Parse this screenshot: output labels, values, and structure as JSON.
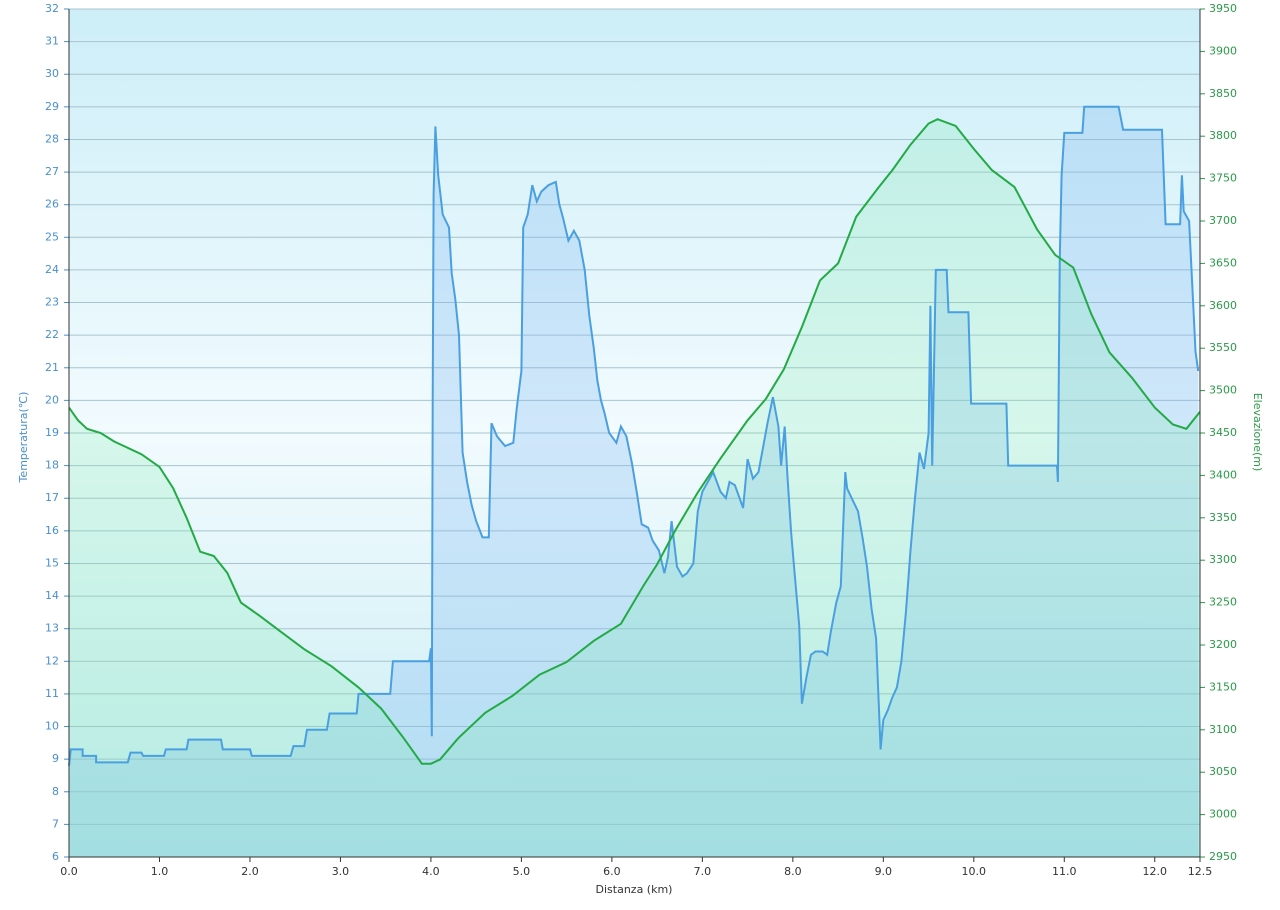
{
  "chart_data": {
    "type": "line",
    "x_label": "Distanza  (km)",
    "y_label": "Temperatura(℃)",
    "y2_label": "Elevazione(m)",
    "xlim": [
      0,
      12.5
    ],
    "xticks": [
      {
        "value": 0,
        "label": "0.0"
      },
      {
        "value": 1,
        "label": "1.0"
      },
      {
        "value": 2,
        "label": "2.0"
      },
      {
        "value": 3,
        "label": "3.0"
      },
      {
        "value": 4,
        "label": "4.0"
      },
      {
        "value": 5,
        "label": "5.0"
      },
      {
        "value": 6,
        "label": "6.0"
      },
      {
        "value": 7,
        "label": "7.0"
      },
      {
        "value": 8,
        "label": "8.0"
      },
      {
        "value": 9,
        "label": "9.0"
      },
      {
        "value": 10,
        "label": "10.0"
      },
      {
        "value": 11,
        "label": "11.0"
      },
      {
        "value": 12,
        "label": "12.0"
      },
      12.5
    ],
    "ylim": [
      6,
      32
    ],
    "yticks": [
      6,
      7,
      8,
      9,
      10,
      11,
      12,
      13,
      14,
      15,
      16,
      17,
      18,
      19,
      20,
      21,
      22,
      23,
      24,
      25,
      26,
      27,
      28,
      29,
      30,
      31,
      32
    ],
    "y2lim": [
      2950,
      3950
    ],
    "y2ticks": [
      2950,
      3000,
      3050,
      3100,
      3150,
      3200,
      3250,
      3300,
      3350,
      3400,
      3450,
      3500,
      3550,
      3600,
      3650,
      3700,
      3750,
      3800,
      3850,
      3900,
      3950
    ],
    "grid": true,
    "series": [
      {
        "color": "#4a9fe0",
        "axis": "y",
        "x": [
          0,
          0.02,
          0.15,
          0.15,
          0.3,
          0.3,
          0.65,
          0.68,
          0.8,
          0.82,
          1.05,
          1.07,
          1.3,
          1.32,
          1.68,
          1.7,
          2.0,
          2.02,
          2.45,
          2.48,
          2.6,
          2.63,
          2.85,
          2.88,
          3.18,
          3.2,
          3.55,
          3.58,
          3.98,
          4.0,
          4.01,
          4.02,
          4.03,
          4.05,
          4.08,
          4.13,
          4.2,
          4.23,
          4.27,
          4.31,
          4.35,
          4.4,
          4.45,
          4.5,
          4.57,
          4.64,
          4.67,
          4.73,
          4.82,
          4.91,
          4.95,
          5.0,
          5.02,
          5.07,
          5.12,
          5.17,
          5.22,
          5.3,
          5.38,
          5.42,
          5.46,
          5.52,
          5.58,
          5.64,
          5.7,
          5.75,
          5.8,
          5.84,
          5.88,
          5.92,
          5.97,
          6.05,
          6.1,
          6.16,
          6.22,
          6.28,
          6.33,
          6.4,
          6.45,
          6.52,
          6.58,
          6.62,
          6.66,
          6.72,
          6.78,
          6.83,
          6.9,
          6.95,
          7.0,
          7.06,
          7.12,
          7.2,
          7.26,
          7.3,
          7.36,
          7.45,
          7.5,
          7.56,
          7.62,
          7.66,
          7.72,
          7.78,
          7.84,
          7.87,
          7.91,
          7.94,
          7.98,
          8.02,
          8.07,
          8.1,
          8.15,
          8.2,
          8.25,
          8.33,
          8.38,
          8.42,
          8.48,
          8.53,
          8.58,
          8.6,
          8.65,
          8.72,
          8.77,
          8.82,
          8.87,
          8.92,
          8.97,
          9.0,
          9.05,
          9.1,
          9.15,
          9.2,
          9.25,
          9.3,
          9.35,
          9.4,
          9.45,
          9.5,
          9.52,
          9.54,
          9.58,
          9.7,
          9.72,
          9.94,
          9.97,
          10.36,
          10.38,
          10.92,
          10.93,
          10.95,
          10.97,
          11.0,
          11.2,
          11.22,
          11.6,
          11.65,
          12.08,
          12.12,
          12.28,
          12.3,
          12.32,
          12.38,
          12.42,
          12.45,
          12.48
        ],
        "values": [
          8.8,
          9.3,
          9.3,
          9.1,
          9.1,
          8.9,
          8.9,
          9.2,
          9.2,
          9.1,
          9.1,
          9.3,
          9.3,
          9.6,
          9.6,
          9.3,
          9.3,
          9.1,
          9.1,
          9.4,
          9.4,
          9.9,
          9.9,
          10.4,
          10.4,
          11.0,
          11.0,
          12.0,
          12.0,
          12.4,
          9.7,
          20.0,
          26.3,
          28.4,
          26.9,
          25.7,
          25.3,
          23.9,
          23.1,
          22.0,
          18.4,
          17.5,
          16.8,
          16.3,
          15.8,
          15.8,
          19.3,
          18.9,
          18.6,
          18.7,
          19.8,
          20.9,
          25.3,
          25.7,
          26.6,
          26.1,
          26.4,
          26.6,
          26.7,
          26.0,
          25.6,
          24.9,
          25.2,
          24.9,
          24.0,
          22.6,
          21.6,
          20.6,
          20.0,
          19.6,
          19.0,
          18.7,
          19.2,
          18.9,
          18.1,
          17.1,
          16.2,
          16.1,
          15.7,
          15.4,
          14.7,
          15.2,
          16.3,
          14.9,
          14.6,
          14.7,
          15.0,
          16.6,
          17.2,
          17.5,
          17.8,
          17.2,
          17.0,
          17.5,
          17.4,
          16.7,
          18.2,
          17.6,
          17.8,
          18.4,
          19.3,
          20.1,
          19.2,
          18.0,
          19.2,
          17.7,
          16.0,
          14.7,
          13.1,
          10.7,
          11.5,
          12.2,
          12.3,
          12.3,
          12.2,
          12.9,
          13.8,
          14.3,
          17.8,
          17.3,
          17.0,
          16.6,
          15.8,
          14.9,
          13.6,
          12.7,
          9.3,
          10.2,
          10.5,
          10.9,
          11.2,
          12.0,
          13.5,
          15.4,
          17.0,
          18.4,
          17.9,
          19.0,
          22.9,
          18.0,
          24.0,
          24.0,
          22.7,
          22.7,
          19.9,
          19.9,
          18.0,
          18.0,
          17.5,
          24.4,
          26.9,
          28.2,
          28.2,
          29.0,
          29.0,
          28.3,
          28.3,
          25.4,
          25.4,
          26.9,
          25.8,
          25.5,
          23.2,
          21.5,
          20.9
        ]
      },
      {
        "color": "#22aa44",
        "axis": "y2",
        "x": [
          0,
          0.1,
          0.2,
          0.35,
          0.5,
          0.8,
          1.0,
          1.15,
          1.3,
          1.45,
          1.6,
          1.75,
          1.9,
          2.1,
          2.35,
          2.6,
          2.9,
          3.2,
          3.45,
          3.7,
          3.9,
          4.0,
          4.1,
          4.3,
          4.6,
          4.9,
          5.2,
          5.5,
          5.8,
          6.1,
          6.35,
          6.5,
          6.7,
          6.95,
          7.2,
          7.5,
          7.7,
          7.9,
          8.1,
          8.3,
          8.5,
          8.7,
          8.95,
          9.1,
          9.3,
          9.5,
          9.6,
          9.8,
          10.0,
          10.2,
          10.45,
          10.7,
          10.9,
          11.1,
          11.3,
          11.5,
          11.75,
          12.0,
          12.2,
          12.35,
          12.5
        ],
        "values": [
          3480,
          3465,
          3455,
          3450,
          3440,
          3425,
          3410,
          3385,
          3350,
          3310,
          3305,
          3285,
          3250,
          3235,
          3215,
          3195,
          3175,
          3150,
          3125,
          3090,
          3060,
          3060,
          3065,
          3090,
          3120,
          3140,
          3165,
          3180,
          3205,
          3225,
          3270,
          3295,
          3335,
          3380,
          3420,
          3465,
          3490,
          3525,
          3575,
          3630,
          3650,
          3705,
          3740,
          3760,
          3790,
          3815,
          3820,
          3812,
          3785,
          3760,
          3740,
          3690,
          3660,
          3645,
          3590,
          3545,
          3515,
          3480,
          3460,
          3455,
          3475
        ]
      }
    ]
  }
}
